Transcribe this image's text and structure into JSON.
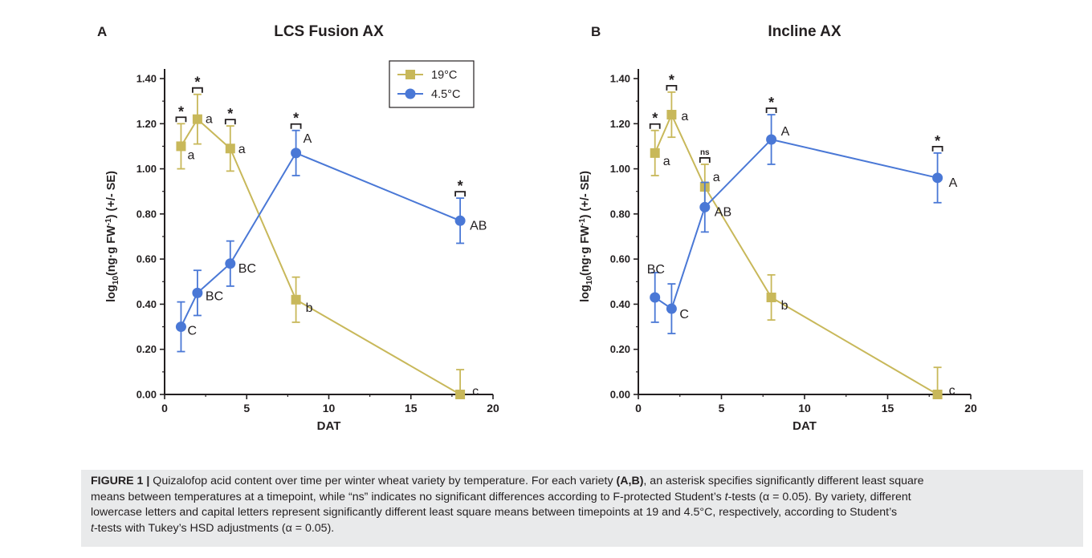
{
  "figure_label_sep": " | ",
  "caption": {
    "label": "FIGURE 1",
    "line1": "Quizalofop acid content over time per winter wheat variety by temperature. For each variety ",
    "line1_bold": "(A,B)",
    "line1_rest": ", an asterisk specifies significantly different least square",
    "line2": "means between temperatures at a timepoint, while “ns” indicates no significant differences according to F-protected Student’s ",
    "line2_italic": "t",
    "line2_rest": "-tests (α = 0.05). By variety, different",
    "line3": "lowercase letters and capital letters represent significantly different least square means between timepoints at 19 and 4.5°C, respectively, according to Student’s",
    "line4_italic": "t",
    "line4_rest": "-tests with Tukey’s HSD adjustments (α = 0.05)."
  },
  "colors": {
    "warm": "#c8b85a",
    "cold": "#4a78d6",
    "axis": "#231f20"
  },
  "chart_data": [
    {
      "type": "line",
      "panel_label": "A",
      "title": "LCS Fusion AX",
      "xlabel": "DAT",
      "ylabel_main": "log",
      "ylabel_sub": "10",
      "ylabel_rest1": "(ng·g FW",
      "ylabel_sup": "-1",
      "ylabel_rest2": ") (+/- SE)",
      "xlim": [
        0,
        20
      ],
      "ylim": [
        0,
        1.4
      ],
      "xticks": [
        0,
        5,
        10,
        15,
        20
      ],
      "yticks": [
        "0.00",
        "0.20",
        "0.40",
        "0.60",
        "0.80",
        "1.00",
        "1.20",
        "1.40"
      ],
      "legend_position": "top-right",
      "series": [
        {
          "name": "19°C",
          "marker": "square",
          "color": "#c8b85a",
          "x": [
            1,
            2,
            4,
            8,
            18
          ],
          "y": [
            1.1,
            1.22,
            1.09,
            0.42,
            0.0
          ],
          "err": [
            0.1,
            0.11,
            0.1,
            0.1,
            0.11
          ],
          "letters": [
            "a",
            "a",
            "a",
            "b",
            "c"
          ]
        },
        {
          "name": "4.5°C",
          "marker": "circle",
          "color": "#4a78d6",
          "x": [
            1,
            2,
            4,
            8,
            18
          ],
          "y": [
            0.3,
            0.45,
            0.58,
            1.07,
            0.77
          ],
          "err": [
            0.11,
            0.1,
            0.1,
            0.1,
            0.1
          ],
          "letters": [
            "C",
            "BC",
            "BC",
            "A",
            "AB"
          ]
        }
      ],
      "significance": [
        {
          "x": 1,
          "label": "*"
        },
        {
          "x": 2,
          "label": "*"
        },
        {
          "x": 4,
          "label": "*"
        },
        {
          "x": 8,
          "label": "*"
        },
        {
          "x": 18,
          "label": "*"
        }
      ]
    },
    {
      "type": "line",
      "panel_label": "B",
      "title": "Incline AX",
      "xlabel": "DAT",
      "ylabel_main": "log",
      "ylabel_sub": "10",
      "ylabel_rest1": "(ng·g FW",
      "ylabel_sup": "-1",
      "ylabel_rest2": ") (+/- SE)",
      "xlim": [
        0,
        20
      ],
      "ylim": [
        0,
        1.4
      ],
      "xticks": [
        0,
        5,
        10,
        15,
        20
      ],
      "yticks": [
        "0.00",
        "0.20",
        "0.40",
        "0.60",
        "0.80",
        "1.00",
        "1.20",
        "1.40"
      ],
      "legend_position": "none",
      "series": [
        {
          "name": "19°C",
          "marker": "square",
          "color": "#c8b85a",
          "x": [
            1,
            2,
            4,
            8,
            18
          ],
          "y": [
            1.07,
            1.24,
            0.92,
            0.43,
            0.0
          ],
          "err": [
            0.1,
            0.1,
            0.1,
            0.1,
            0.12
          ],
          "letters": [
            "a",
            "a",
            "a",
            "b",
            "c"
          ]
        },
        {
          "name": "4.5°C",
          "marker": "circle",
          "color": "#4a78d6",
          "x": [
            1,
            2,
            4,
            8,
            18
          ],
          "y": [
            0.43,
            0.38,
            0.83,
            1.13,
            0.96
          ],
          "err": [
            0.11,
            0.11,
            0.11,
            0.11,
            0.11
          ],
          "letters": [
            "BC",
            "C",
            "AB",
            "A",
            "A"
          ]
        }
      ],
      "significance": [
        {
          "x": 1,
          "label": "*"
        },
        {
          "x": 2,
          "label": "*"
        },
        {
          "x": 4,
          "label": "ns"
        },
        {
          "x": 8,
          "label": "*"
        },
        {
          "x": 18,
          "label": "*"
        }
      ]
    }
  ]
}
